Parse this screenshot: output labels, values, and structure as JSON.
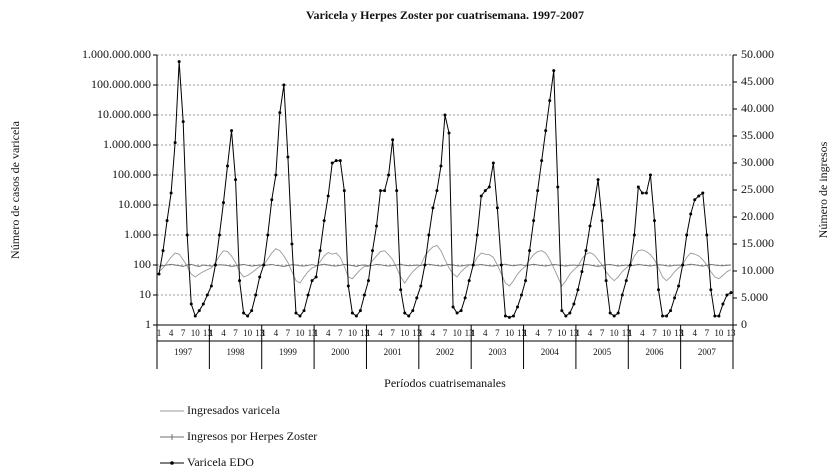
{
  "chart_data": {
    "type": "line",
    "title": "Varicela y Herpes Zoster por cuatrisemana. 1997-2007",
    "x_label": "Períodos cuatrisemanales",
    "y_label": "Número de casos de varicela",
    "y2_label": "Número de ingresos",
    "yscale": "log",
    "grid": true,
    "legend": "bottom-left",
    "years": [
      "1997",
      "1998",
      "1999",
      "2000",
      "2001",
      "2002",
      "2003",
      "2004",
      "2005",
      "2006",
      "2007"
    ],
    "categories": [
      "1",
      null,
      null,
      "4",
      null,
      null,
      "7",
      null,
      null,
      "10",
      null,
      null,
      "13",
      "1",
      null,
      null,
      "4",
      null,
      null,
      "7",
      null,
      null,
      "10",
      null,
      null,
      "13",
      "1",
      null,
      null,
      "4",
      null,
      null,
      "7",
      null,
      null,
      "10",
      null,
      null,
      "13",
      "1",
      null,
      null,
      "4",
      null,
      null,
      "7",
      null,
      null,
      "10",
      null,
      null,
      "13",
      "1",
      null,
      null,
      "4",
      null,
      null,
      "7",
      null,
      null,
      "10",
      null,
      null,
      "13",
      "1",
      null,
      null,
      "4",
      null,
      null,
      "7",
      null,
      null,
      "10",
      null,
      null,
      "13",
      "1",
      null,
      null,
      "4",
      null,
      null,
      "7",
      null,
      null,
      "10",
      null,
      null,
      "13",
      "1",
      null,
      null,
      "4",
      null,
      null,
      "7",
      null,
      null,
      "10",
      null,
      null,
      "13",
      "1",
      null,
      null,
      "4",
      null,
      null,
      "7",
      null,
      null,
      "10",
      null,
      null,
      "13",
      "1",
      null,
      null,
      "4",
      null,
      null,
      "7",
      null,
      null,
      "10",
      null,
      null,
      "13",
      "1",
      null,
      null,
      "4",
      null,
      null,
      "7",
      null,
      null,
      "10",
      null,
      null,
      "13"
    ],
    "ylim": [
      1,
      1000000000
    ],
    "yticks": [
      1,
      10,
      100,
      {
        "value": 1000,
        "label": "1.000"
      },
      {
        "value": 10000,
        "label": "10.000"
      },
      {
        "value": 100000,
        "label": "100.000"
      },
      {
        "value": 1000000,
        "label": "1.000.000"
      },
      {
        "value": 10000000,
        "label": "10.000.000"
      },
      {
        "value": 100000000,
        "label": "100.000.000"
      },
      {
        "value": 1000000000,
        "label": "1.000.000.000"
      }
    ],
    "y2lim": [
      0,
      50000
    ],
    "y2ticks": [
      0,
      {
        "value": 5000,
        "label": "5.000"
      },
      {
        "value": 10000,
        "label": "10.000"
      },
      {
        "value": 15000,
        "label": "15.000"
      },
      {
        "value": 20000,
        "label": "20.000"
      },
      {
        "value": 25000,
        "label": "25.000"
      },
      {
        "value": 30000,
        "label": "30.000"
      },
      {
        "value": 35000,
        "label": "35.000"
      },
      {
        "value": 40000,
        "label": "40.000"
      },
      {
        "value": 45000,
        "label": "45.000"
      },
      {
        "value": 50000,
        "label": "50.000"
      }
    ],
    "series": [
      {
        "name": "Ingresados varicela",
        "color": "#9a9a9a",
        "values": [
          60,
          80,
          120,
          180,
          250,
          230,
          150,
          90,
          50,
          40,
          50,
          60,
          70,
          80,
          120,
          200,
          300,
          280,
          200,
          120,
          60,
          40,
          45,
          55,
          70,
          90,
          100,
          160,
          250,
          350,
          300,
          200,
          120,
          60,
          30,
          25,
          40,
          60,
          80,
          90,
          130,
          200,
          260,
          230,
          250,
          180,
          90,
          40,
          35,
          50,
          70,
          90,
          90,
          140,
          200,
          280,
          300,
          220,
          150,
          80,
          40,
          25,
          40,
          60,
          80,
          100,
          200,
          300,
          400,
          450,
          300,
          150,
          80,
          50,
          40,
          60,
          80,
          100,
          100,
          180,
          250,
          230,
          220,
          180,
          100,
          50,
          25,
          20,
          30,
          50,
          70,
          90,
          150,
          220,
          280,
          300,
          250,
          150,
          80,
          40,
          20,
          30,
          50,
          70,
          90,
          160,
          230,
          260,
          220,
          150,
          100,
          60,
          40,
          30,
          40,
          60,
          80,
          100,
          200,
          300,
          320,
          280,
          220,
          150,
          80,
          40,
          30,
          40,
          60,
          80,
          100,
          180,
          250,
          230,
          200,
          150,
          100,
          60,
          40,
          35,
          45,
          60,
          70
        ]
      },
      {
        "name": "Ingresos por Herpes Zoster",
        "color": "#707070",
        "values": [
          90,
          95,
          100,
          105,
          100,
          95,
          90,
          100,
          105,
          95,
          90,
          100,
          95,
          92,
          98,
          102,
          100,
          96,
          90,
          94,
          100,
          104,
          98,
          92,
          96,
          100,
          95,
          100,
          104,
          98,
          94,
          90,
          96,
          102,
          100,
          94,
          92,
          98,
          102,
          96,
          100,
          106,
          100,
          94,
          92,
          98,
          104,
          100,
          96,
          90,
          98,
          100,
          94,
          98,
          104,
          102,
          96,
          92,
          96,
          100,
          106,
          98,
          94,
          96,
          100,
          96,
          102,
          106,
          100,
          96,
          92,
          98,
          104,
          100,
          94,
          92,
          98,
          102,
          98,
          100,
          104,
          98,
          94,
          92,
          98,
          102,
          106,
          98,
          94,
          100,
          102,
          94,
          100,
          106,
          100,
          96,
          92,
          98,
          104,
          100,
          96,
          92,
          98,
          100,
          96,
          100,
          104,
          100,
          94,
          90,
          96,
          102,
          104,
          98,
          92,
          96,
          100,
          94,
          98,
          104,
          100,
          96,
          92,
          98,
          102,
          100,
          94,
          92,
          98,
          100,
          96,
          100,
          106,
          102,
          96,
          92,
          98,
          104,
          100,
          96,
          94,
          98,
          100
        ]
      },
      {
        "name": "Varicela EDO",
        "color": "#000000",
        "values": [
          50,
          300,
          3000,
          25000,
          1200000,
          600000000,
          6000000,
          1000,
          5,
          2,
          3,
          5,
          10,
          20,
          100,
          1000,
          12000,
          200000,
          3000000,
          70000,
          30,
          2.5,
          2,
          3,
          10,
          40,
          100,
          1000,
          15000,
          100000,
          12000000,
          100000000,
          400000,
          500,
          2.5,
          2,
          3,
          10,
          30,
          40,
          300,
          3000,
          20000,
          250000,
          300000,
          300000,
          30000,
          20,
          2.5,
          2,
          3,
          10,
          30,
          300,
          2000,
          30000,
          30000,
          100000,
          1500000,
          30000,
          15,
          2.5,
          2,
          3,
          8,
          20,
          100,
          1000,
          8000,
          30000,
          200000,
          10000000,
          2500000,
          4,
          2.5,
          3,
          8,
          30,
          100,
          1000,
          20000,
          30000,
          40000,
          250000,
          8000,
          100,
          2,
          1.8,
          2,
          4,
          10,
          30,
          300,
          3000,
          30000,
          300000,
          3000000,
          30000000,
          300000000,
          40000,
          3,
          2,
          2.5,
          5,
          15,
          60,
          300,
          2000,
          10000,
          70000,
          3000,
          30,
          2.5,
          2,
          2.5,
          10,
          30,
          100,
          1000,
          40000,
          25000,
          25000,
          100000,
          3000,
          15,
          2,
          2,
          3,
          8,
          20,
          100,
          1000,
          5000,
          15000,
          20000,
          25000,
          1000,
          15,
          2,
          2,
          5,
          10,
          12
        ]
      }
    ]
  }
}
